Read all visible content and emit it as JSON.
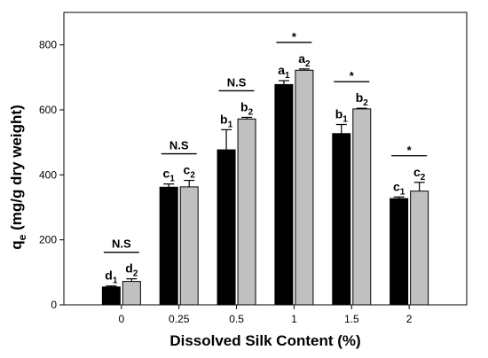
{
  "chart_data": {
    "type": "bar",
    "title": "",
    "xlabel": "Dissolved Silk Content (%)",
    "ylabel_main": "q",
    "ylabel_sub": "e",
    "ylabel_rest": " (mg/g dry weight)",
    "categories": [
      "0",
      "0.25",
      "0.5",
      "1",
      "1.5",
      "2"
    ],
    "ylim": [
      0,
      900
    ],
    "yticks": [
      0,
      200,
      400,
      600,
      800
    ],
    "series": [
      {
        "color": "#000000",
        "values": [
          55,
          362,
          477,
          678,
          527,
          327
        ],
        "errors": [
          3,
          10,
          62,
          12,
          28,
          5
        ],
        "letters": [
          {
            "main": "d",
            "sub": "1"
          },
          {
            "main": "c",
            "sub": "1"
          },
          {
            "main": "b",
            "sub": "1"
          },
          {
            "main": "a",
            "sub": "1"
          },
          {
            "main": "b",
            "sub": "1"
          },
          {
            "main": "c",
            "sub": "1"
          }
        ]
      },
      {
        "color": "#c0c0c0",
        "values": [
          72,
          363,
          572,
          722,
          603,
          350
        ],
        "errors": [
          8,
          20,
          5,
          4,
          2,
          27
        ],
        "letters": [
          {
            "main": "d",
            "sub": "2"
          },
          {
            "main": "c",
            "sub": "2"
          },
          {
            "main": "b",
            "sub": "2"
          },
          {
            "main": "a",
            "sub": "2"
          },
          {
            "main": "b",
            "sub": "2"
          },
          {
            "main": "c",
            "sub": "2"
          }
        ]
      }
    ],
    "significance": [
      "N.S",
      "N.S",
      "N.S",
      "*",
      "*",
      "*"
    ],
    "grid": false,
    "legend": "none"
  }
}
